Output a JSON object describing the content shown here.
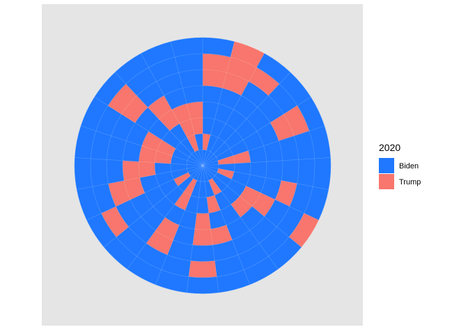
{
  "chart_data": {
    "type": "polar-tile",
    "title": "",
    "xlabel": "",
    "ylabel": "",
    "legend": {
      "title": "2020",
      "placement": "right",
      "entries": [
        {
          "name": "Biden",
          "color": "#1F78FF"
        },
        {
          "name": "Trump",
          "color": "#F8766D"
        }
      ]
    },
    "panel_background": "#E5E5E5",
    "gridlines": true,
    "n_sectors": 25,
    "n_rings": 8,
    "trump_cells": [
      [
        0,
        1
      ],
      [
        0,
        5
      ],
      [
        0,
        6
      ],
      [
        1,
        5
      ],
      [
        1,
        6
      ],
      [
        1,
        7
      ],
      [
        2,
        6
      ],
      [
        4,
        5
      ],
      [
        4,
        6
      ],
      [
        5,
        1
      ],
      [
        5,
        2
      ],
      [
        7,
        1
      ],
      [
        7,
        5
      ],
      [
        8,
        3
      ],
      [
        8,
        4
      ],
      [
        8,
        7
      ],
      [
        9,
        3
      ],
      [
        10,
        1
      ],
      [
        11,
        2
      ],
      [
        11,
        4
      ],
      [
        12,
        3
      ],
      [
        12,
        4
      ],
      [
        12,
        6
      ],
      [
        14,
        1
      ],
      [
        14,
        2
      ],
      [
        14,
        4
      ],
      [
        14,
        5
      ],
      [
        16,
        1
      ],
      [
        16,
        6
      ],
      [
        17,
        4
      ],
      [
        17,
        5
      ],
      [
        18,
        3
      ],
      [
        18,
        4
      ],
      [
        19,
        2
      ],
      [
        19,
        3
      ],
      [
        20,
        2
      ],
      [
        20,
        3
      ],
      [
        21,
        5
      ],
      [
        21,
        6
      ],
      [
        22,
        3
      ],
      [
        22,
        4
      ],
      [
        23,
        1
      ],
      [
        23,
        2
      ],
      [
        23,
        3
      ],
      [
        24,
        2
      ],
      [
        24,
        3
      ]
    ]
  }
}
